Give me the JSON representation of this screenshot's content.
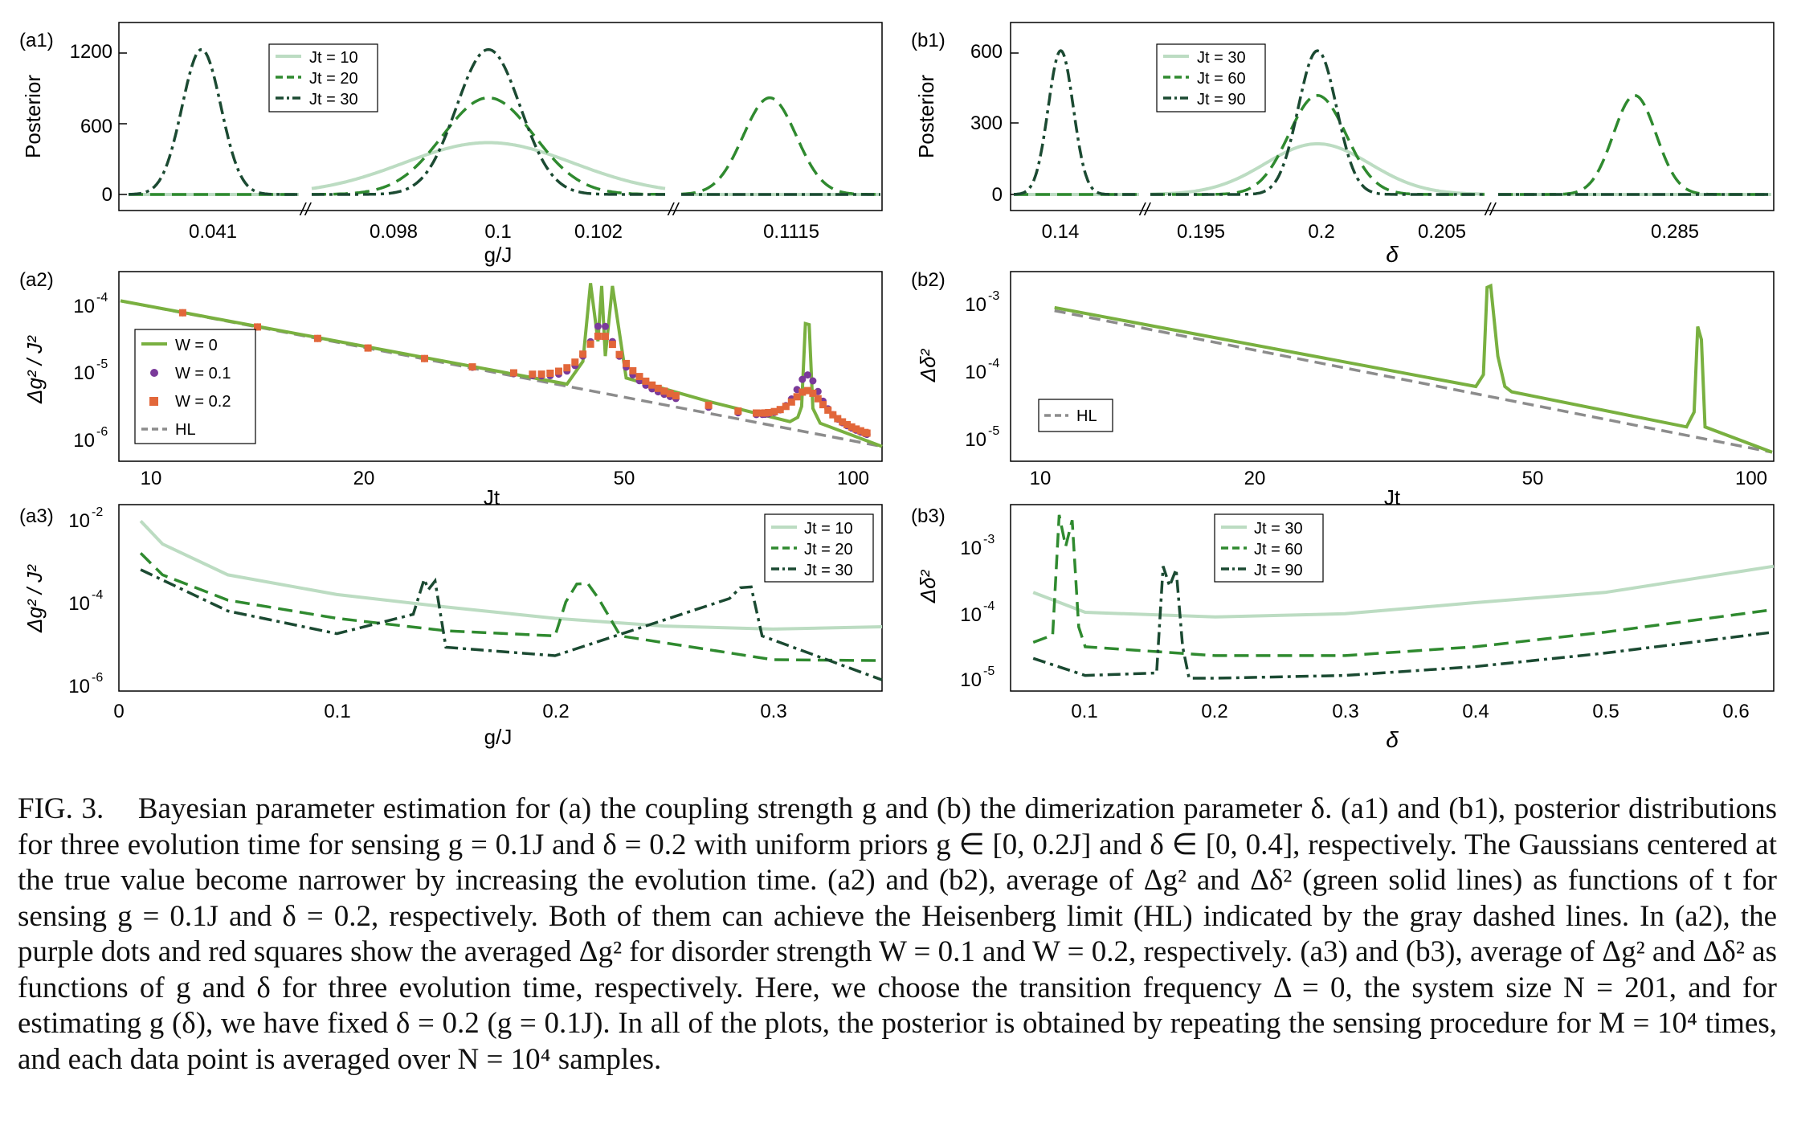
{
  "colors": {
    "light": "#bcdcc2",
    "mid": "#2f8a2f",
    "dark": "#1b4a32",
    "lime": "#79b040",
    "purple": "#7a3a9a",
    "orange": "#e2673a",
    "hl": "#8c8c8c"
  },
  "panels": {
    "a1": {
      "tag": "(a1)",
      "ylabel": "Posterior",
      "xlabel": "g/J",
      "yticks": [
        "0",
        "600",
        "1200"
      ],
      "xticks": [
        "0.041",
        "0.098",
        "0.1",
        "0.102",
        "0.1115"
      ],
      "break": "//",
      "legend": [
        "Jt = 10",
        "Jt = 20",
        "Jt = 30"
      ]
    },
    "b1": {
      "tag": "(b1)",
      "ylabel": "Posterior",
      "xlabel": "δ",
      "yticks": [
        "0",
        "300",
        "600"
      ],
      "xticks": [
        "0.14",
        "0.195",
        "0.2",
        "0.205",
        "0.285"
      ],
      "break": "//",
      "legend": [
        "Jt = 30",
        "Jt = 60",
        "Jt = 90"
      ]
    },
    "a2": {
      "tag": "(a2)",
      "ylabel": "Δg² / J²",
      "xlabel": "Jt",
      "yticks": [
        "10",
        "10",
        "10"
      ],
      "yexps": [
        "-6",
        "-5",
        "-4"
      ],
      "xticks": [
        "10",
        "20",
        "50",
        "100"
      ],
      "legend": [
        "W = 0",
        "W = 0.1",
        "W = 0.2",
        "HL"
      ]
    },
    "b2": {
      "tag": "(b2)",
      "ylabel": "Δδ²",
      "xlabel": "Jt",
      "yticks": [
        "10",
        "10",
        "10"
      ],
      "yexps": [
        "-5",
        "-4",
        "-3"
      ],
      "xticks": [
        "10",
        "20",
        "50",
        "100"
      ],
      "legend": [
        "HL"
      ]
    },
    "a3": {
      "tag": "(a3)",
      "ylabel": "Δg² / J²",
      "xlabel": "g/J",
      "yticks": [
        "10",
        "10",
        "10"
      ],
      "yexps": [
        "-6",
        "-4",
        "-2"
      ],
      "xticks": [
        "0",
        "0.1",
        "0.2",
        "0.3"
      ],
      "legend": [
        "Jt = 10",
        "Jt = 20",
        "Jt = 30"
      ]
    },
    "b3": {
      "tag": "(b3)",
      "ylabel": "Δδ²",
      "xlabel": "δ",
      "yticks": [
        "10",
        "10",
        "10"
      ],
      "yexps": [
        "-5",
        "-4",
        "-3"
      ],
      "xticks": [
        "0.1",
        "0.2",
        "0.3",
        "0.4",
        "0.5",
        "0.6"
      ],
      "legend": [
        "Jt = 30",
        "Jt = 60",
        "Jt = 90"
      ]
    }
  },
  "caption": {
    "label": "FIG. 3.",
    "text": "Bayesian parameter estimation for (a) the coupling strength g and (b) the dimerization parameter δ. (a1) and (b1), posterior distributions for three evolution time for sensing g = 0.1J and δ = 0.2 with uniform priors g ∈ [0, 0.2J] and δ ∈ [0, 0.4], respectively. The Gaussians centered at the true value become narrower by increasing the evolution time. (a2) and (b2), average of Δg² and Δδ² (green solid lines) as functions of t for sensing g = 0.1J and δ = 0.2, respectively. Both of them can achieve the Heisenberg limit (HL) indicated by the gray dashed lines. In (a2), the purple dots and red squares show the averaged Δg² for disorder strength W = 0.1 and W = 0.2, respectively. (a3) and (b3), average of Δg² and Δδ² as functions of g and δ for three evolution time, respectively. Here, we choose the transition frequency Δ = 0, the system size N = 201, and for estimating g (δ), we have fixed δ = 0.2 (g = 0.1J). In all of the plots, the posterior is obtained by repeating the sensing procedure for M = 10⁴ times, and each data point is averaged over N = 10⁴ samples."
  },
  "chart_data": [
    {
      "id": "a1",
      "type": "line",
      "xlabel": "g/J",
      "ylabel": "Posterior",
      "ylim": [
        0,
        1350
      ],
      "x_breaks": [
        "0.041 // 0.098",
        "0.102 // 0.1115"
      ],
      "series": [
        {
          "name": "Jt = 10",
          "peaks": [
            {
              "x": 0.1,
              "y": 440,
              "sigma": 0.0012
            }
          ]
        },
        {
          "name": "Jt = 20",
          "peaks": [
            {
              "x": 0.1,
              "y": 820,
              "sigma": 0.00065
            },
            {
              "x": 0.1115,
              "y": 820,
              "sigma": 0.0006
            }
          ]
        },
        {
          "name": "Jt = 30",
          "peaks": [
            {
              "x": 0.041,
              "y": 1230,
              "sigma": 0.0004
            },
            {
              "x": 0.1,
              "y": 1230,
              "sigma": 0.00045
            }
          ]
        }
      ]
    },
    {
      "id": "b1",
      "type": "line",
      "xlabel": "δ",
      "ylabel": "Posterior",
      "ylim": [
        0,
        680
      ],
      "x_breaks": [
        "0.14 // 0.195",
        "0.205 // 0.285"
      ],
      "series": [
        {
          "name": "Jt = 30",
          "peaks": [
            {
              "x": 0.2,
              "y": 215,
              "sigma": 0.0022
            }
          ]
        },
        {
          "name": "Jt = 60",
          "peaks": [
            {
              "x": 0.2,
              "y": 420,
              "sigma": 0.0012
            },
            {
              "x": 0.285,
              "y": 420,
              "sigma": 0.0011
            }
          ]
        },
        {
          "name": "Jt = 90",
          "peaks": [
            {
              "x": 0.14,
              "y": 610,
              "sigma": 0.0008
            },
            {
              "x": 0.2,
              "y": 610,
              "sigma": 0.0008
            }
          ]
        }
      ]
    },
    {
      "id": "a2",
      "type": "line",
      "xlabel": "Jt",
      "ylabel": "Δg² / J²",
      "xscale": "log",
      "yscale": "log",
      "xlim": [
        9,
        105
      ],
      "ylim": [
        6.3e-07,
        0.00025
      ],
      "series": [
        {
          "name": "W = 0",
          "x": [
            9,
            30,
            38,
            40,
            41,
            42,
            42.5,
            43,
            44,
            46,
            60,
            78,
            80,
            81,
            82,
            83,
            84,
            86,
            105
          ],
          "y": [
            0.00012,
            1.1e-05,
            6.9e-06,
            1.5e-05,
            0.00022,
            3e-05,
            0.0002,
            1.8e-05,
            0.0002,
            8.5e-06,
            3.8e-06,
            1.9e-06,
            2.2e-06,
            3.2e-06,
            5.5e-05,
            5.3e-05,
            3e-06,
            1.8e-06,
            8.1e-07
          ]
        },
        {
          "name": "W = 0.1",
          "peaks": [
            {
              "x": 42.5,
              "y": 5e-05
            },
            {
              "x": 82.5,
              "y": 8e-06
            }
          ]
        },
        {
          "name": "W = 0.2",
          "peaks": [
            {
              "x": 42.5,
              "y": 3.2e-05
            },
            {
              "x": 82.5,
              "y": 4e-06
            }
          ]
        },
        {
          "name": "HL",
          "x": [
            9,
            105
          ],
          "y": [
            0.00012,
            8.1e-07
          ]
        }
      ]
    },
    {
      "id": "b2",
      "type": "line",
      "xlabel": "Jt",
      "ylabel": "Δδ²",
      "xscale": "log",
      "yscale": "log",
      "xlim": [
        8.7,
        106
      ],
      "ylim": [
        5e-06,
        0.0018
      ],
      "series": [
        {
          "name": "W = 0",
          "x": [
            10,
            40,
            41,
            41.5,
            42,
            43,
            44,
            45,
            80,
            82,
            83,
            84,
            85,
            106
          ],
          "y": [
            0.0009,
            6e-05,
            9e-05,
            0.0018,
            0.0019,
            0.00017,
            6e-05,
            5e-05,
            1.5e-05,
            2.5e-05,
            0.00047,
            0.0003,
            1.5e-05,
            6.3e-06
          ]
        },
        {
          "name": "HL",
          "x": [
            10,
            106
          ],
          "y": [
            0.00081,
            6.3e-06
          ]
        }
      ]
    },
    {
      "id": "a3",
      "type": "line",
      "xlabel": "g/J",
      "ylabel": "Δg² / J²",
      "yscale": "log",
      "xlim": [
        0,
        0.35
      ],
      "ylim": [
        7e-07,
        0.015
      ],
      "series": [
        {
          "name": "Jt = 10",
          "x": [
            0.01,
            0.02,
            0.05,
            0.1,
            0.15,
            0.2,
            0.25,
            0.3,
            0.35
          ],
          "y": [
            0.009,
            0.0025,
            0.00045,
            0.00015,
            7.5e-05,
            4e-05,
            2.6e-05,
            2.2e-05,
            2.5e-05
          ]
        },
        {
          "name": "Jt = 20",
          "x": [
            0.01,
            0.02,
            0.05,
            0.1,
            0.15,
            0.2,
            0.205,
            0.21,
            0.215,
            0.22,
            0.23,
            0.3,
            0.35
          ],
          "y": [
            0.0015,
            0.00045,
            0.00011,
            4e-05,
            2e-05,
            1.5e-05,
            0.0001,
            0.00027,
            0.00028,
            0.00012,
            1.5e-05,
            4e-06,
            3.8e-06
          ]
        },
        {
          "name": "Jt = 30",
          "x": [
            0.01,
            0.05,
            0.1,
            0.135,
            0.14,
            0.142,
            0.145,
            0.15,
            0.2,
            0.28,
            0.285,
            0.29,
            0.295,
            0.35
          ],
          "y": [
            0.0006,
            6e-05,
            1.7e-05,
            5e-05,
            0.00035,
            0.0002,
            0.00032,
            8e-06,
            5e-06,
            0.00012,
            0.00022,
            0.00023,
            1.5e-05,
            1.3e-06
          ]
        }
      ]
    },
    {
      "id": "b3",
      "type": "line",
      "xlabel": "δ",
      "ylabel": "Δδ²",
      "yscale": "log",
      "xlim": [
        0.05,
        0.63
      ],
      "ylim": [
        4e-06,
        0.0035
      ],
      "series": [
        {
          "name": "Jt = 30",
          "x": [
            0.06,
            0.1,
            0.2,
            0.3,
            0.4,
            0.5,
            0.63
          ],
          "y": [
            0.0002,
            0.0001,
            8.5e-05,
            9.5e-05,
            0.00014,
            0.0002,
            0.0005
          ]
        },
        {
          "name": "Jt = 60",
          "x": [
            0.06,
            0.075,
            0.08,
            0.085,
            0.09,
            0.095,
            0.1,
            0.2,
            0.3,
            0.4,
            0.5,
            0.63
          ],
          "y": [
            3.5e-05,
            4.5e-05,
            0.003,
            0.001,
            0.0025,
            6e-05,
            3e-05,
            2.2e-05,
            2.2e-05,
            3e-05,
            5e-05,
            0.00011
          ]
        },
        {
          "name": "Jt = 90",
          "x": [
            0.06,
            0.1,
            0.155,
            0.16,
            0.165,
            0.17,
            0.175,
            0.18,
            0.2,
            0.3,
            0.4,
            0.5,
            0.63
          ],
          "y": [
            2e-05,
            1.1e-05,
            1.2e-05,
            0.0005,
            0.00025,
            0.00045,
            3e-05,
            1e-05,
            1e-05,
            1.1e-05,
            1.5e-05,
            2.4e-05,
            5e-05
          ]
        }
      ]
    }
  ]
}
